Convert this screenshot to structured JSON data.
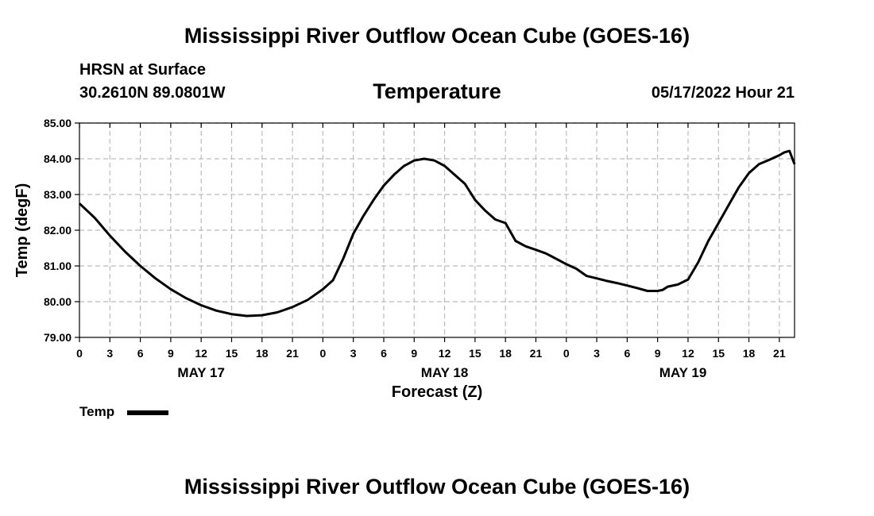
{
  "header": {
    "title": "Mississippi River Outflow Ocean Cube (GOES-16)",
    "site": "HRSN at Surface",
    "coords": "30.2610N  89.0801W",
    "variable": "Temperature",
    "datetime": "05/17/2022 Hour 21"
  },
  "footer": {
    "title": "Mississippi River Outflow Ocean Cube (GOES-16)"
  },
  "legend": {
    "label": "Temp"
  },
  "colors": {
    "line": "#000000",
    "grid": "#bbbbbb"
  },
  "chart_data": {
    "type": "line",
    "title": "Temperature",
    "xlabel": "Forecast (Z)",
    "ylabel": "Temp (degF)",
    "x_unit": "hours since 05/17 00Z",
    "xlim": [
      0,
      70.5
    ],
    "ylim": [
      79.0,
      85.0
    ],
    "grid": true,
    "y_ticks": [
      "79.00",
      "80.00",
      "81.00",
      "82.00",
      "83.00",
      "84.00",
      "85.00"
    ],
    "y_tick_values": [
      79,
      80,
      81,
      82,
      83,
      84,
      85
    ],
    "x_ticks": [
      {
        "hour": 0,
        "label": "0"
      },
      {
        "hour": 3,
        "label": "3"
      },
      {
        "hour": 6,
        "label": "6"
      },
      {
        "hour": 9,
        "label": "9"
      },
      {
        "hour": 12,
        "label": "12"
      },
      {
        "hour": 15,
        "label": "15"
      },
      {
        "hour": 18,
        "label": "18"
      },
      {
        "hour": 21,
        "label": "21"
      },
      {
        "hour": 24,
        "label": "0"
      },
      {
        "hour": 27,
        "label": "3"
      },
      {
        "hour": 30,
        "label": "6"
      },
      {
        "hour": 33,
        "label": "9"
      },
      {
        "hour": 36,
        "label": "12"
      },
      {
        "hour": 39,
        "label": "15"
      },
      {
        "hour": 42,
        "label": "18"
      },
      {
        "hour": 45,
        "label": "21"
      },
      {
        "hour": 48,
        "label": "0"
      },
      {
        "hour": 51,
        "label": "3"
      },
      {
        "hour": 54,
        "label": "6"
      },
      {
        "hour": 57,
        "label": "9"
      },
      {
        "hour": 60,
        "label": "12"
      },
      {
        "hour": 63,
        "label": "15"
      },
      {
        "hour": 66,
        "label": "18"
      },
      {
        "hour": 69,
        "label": "21"
      }
    ],
    "day_labels": [
      {
        "hour": 12,
        "label": "MAY 17"
      },
      {
        "hour": 36,
        "label": "MAY 18"
      },
      {
        "hour": 59.5,
        "label": "MAY 19"
      }
    ],
    "series": [
      {
        "name": "Temp",
        "x": [
          0,
          1.5,
          3,
          4.5,
          6,
          7.5,
          9,
          10.5,
          12,
          13.5,
          15,
          16.5,
          18,
          19.5,
          21,
          22.5,
          24,
          25,
          26,
          27,
          28,
          29,
          30,
          31,
          32,
          33,
          34,
          35,
          36,
          37,
          38,
          39,
          40,
          41,
          42,
          43,
          44,
          45,
          46,
          47,
          48,
          49,
          50,
          51,
          52,
          53,
          54,
          55,
          56,
          57,
          57.5,
          58,
          59,
          60,
          61,
          62,
          63,
          64,
          65,
          66,
          67,
          68,
          69,
          69.5,
          70,
          70.5
        ],
        "y": [
          82.75,
          82.35,
          81.85,
          81.4,
          81.0,
          80.65,
          80.35,
          80.1,
          79.9,
          79.75,
          79.65,
          79.6,
          79.62,
          79.7,
          79.85,
          80.05,
          80.35,
          80.6,
          81.2,
          81.9,
          82.4,
          82.85,
          83.25,
          83.55,
          83.8,
          83.95,
          84.0,
          83.95,
          83.8,
          83.55,
          83.3,
          82.85,
          82.55,
          82.3,
          82.2,
          81.7,
          81.55,
          81.45,
          81.35,
          81.2,
          81.05,
          80.92,
          80.72,
          80.65,
          80.58,
          80.52,
          80.45,
          80.38,
          80.3,
          80.3,
          80.33,
          80.42,
          80.48,
          80.62,
          81.1,
          81.7,
          82.2,
          82.7,
          83.2,
          83.6,
          83.85,
          83.97,
          84.1,
          84.18,
          84.22,
          83.85
        ]
      }
    ]
  }
}
